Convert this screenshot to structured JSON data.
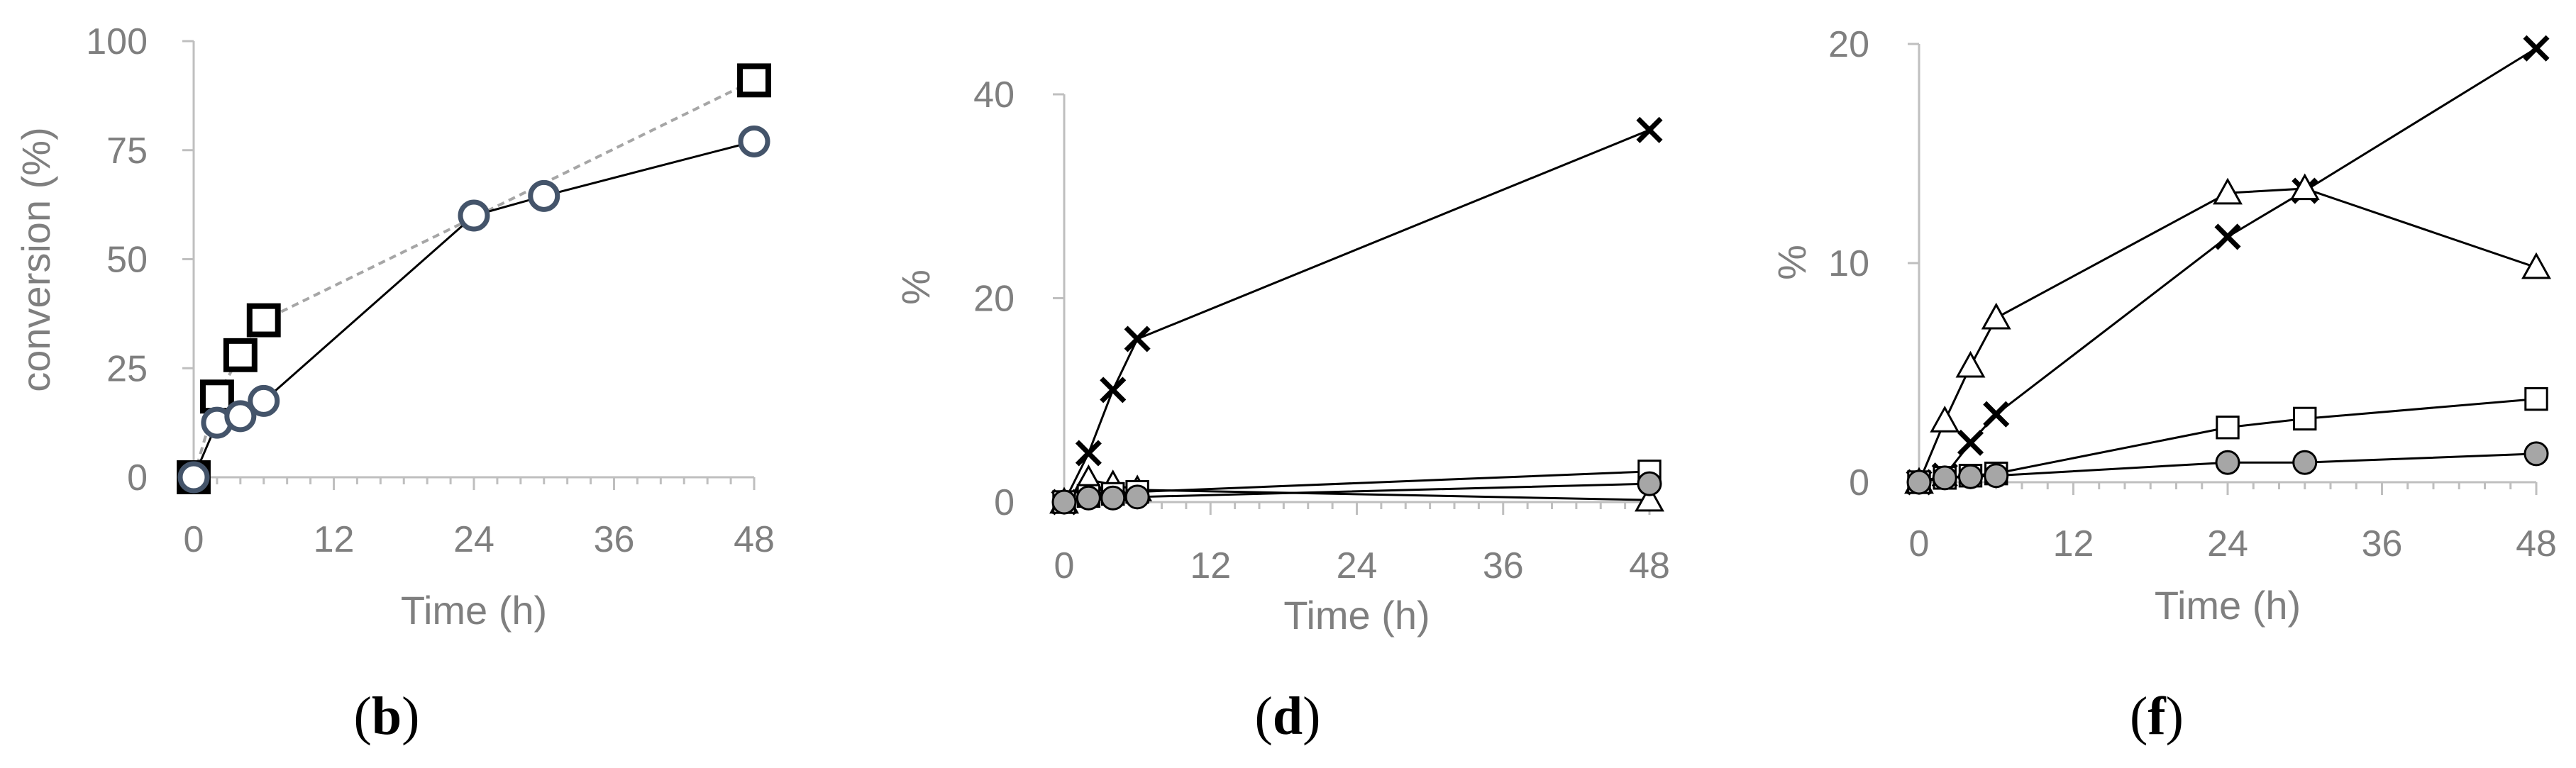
{
  "chart_data": [
    {
      "panel": "b",
      "type": "line",
      "xlabel": "Time (h)",
      "ylabel": "conversion (%)",
      "xlim": [
        0,
        48
      ],
      "ylim": [
        0,
        100
      ],
      "xticks": [
        "0",
        "12",
        "24",
        "36",
        "48"
      ],
      "yticks": [
        "0",
        "25",
        "50",
        "75",
        "100"
      ],
      "series": [
        {
          "marker": "square-bold",
          "line": "dashed-gray",
          "x": [
            0,
            2,
            4,
            6,
            48
          ],
          "y": [
            0,
            18.5,
            28,
            36,
            91
          ]
        },
        {
          "marker": "circle-steel",
          "line": "solid-black",
          "x": [
            0,
            2,
            4,
            6,
            24,
            30,
            48
          ],
          "y": [
            0,
            12.5,
            14,
            17.5,
            60,
            64.5,
            77
          ]
        }
      ]
    },
    {
      "panel": "d",
      "type": "line",
      "xlabel": "Time (h)",
      "ylabel": "%",
      "xlim": [
        0,
        48
      ],
      "ylim": [
        0,
        40
      ],
      "xticks": [
        "0",
        "12",
        "24",
        "36",
        "48"
      ],
      "yticks": [
        "0",
        "20",
        "40"
      ],
      "series": [
        {
          "marker": "cross",
          "x": [
            0,
            2,
            4,
            6,
            48
          ],
          "y": [
            0,
            4.8,
            11,
            16,
            36.5
          ]
        },
        {
          "marker": "triangle",
          "x": [
            0,
            2,
            4,
            6,
            48
          ],
          "y": [
            0,
            2.2,
            1.7,
            1.2,
            0.2
          ]
        },
        {
          "marker": "square",
          "x": [
            0,
            2,
            4,
            6,
            48
          ],
          "y": [
            0,
            0.6,
            0.8,
            1.0,
            3.0
          ]
        },
        {
          "marker": "circle-gray",
          "x": [
            0,
            2,
            4,
            6,
            48
          ],
          "y": [
            0,
            0.4,
            0.4,
            0.5,
            1.8
          ]
        }
      ]
    },
    {
      "panel": "f",
      "type": "line",
      "xlabel": "Time (h)",
      "ylabel": "%",
      "xlim": [
        0,
        48
      ],
      "ylim": [
        0,
        20
      ],
      "xticks": [
        "0",
        "12",
        "24",
        "36",
        "48"
      ],
      "yticks": [
        "0",
        "10",
        "20"
      ],
      "series": [
        {
          "marker": "cross",
          "x": [
            0,
            2,
            4,
            6,
            24,
            30,
            48
          ],
          "y": [
            0,
            0.3,
            1.8,
            3.1,
            11.2,
            13.3,
            19.8
          ]
        },
        {
          "marker": "triangle",
          "x": [
            0,
            2,
            4,
            6,
            24,
            30,
            48
          ],
          "y": [
            0,
            2.8,
            5.3,
            7.5,
            13.2,
            13.4,
            9.8
          ]
        },
        {
          "marker": "square",
          "x": [
            0,
            2,
            4,
            6,
            24,
            30,
            48
          ],
          "y": [
            0,
            0.2,
            0.3,
            0.4,
            2.5,
            2.9,
            3.8
          ]
        },
        {
          "marker": "circle-gray",
          "x": [
            0,
            2,
            4,
            6,
            24,
            30,
            48
          ],
          "y": [
            0,
            0.2,
            0.25,
            0.3,
            0.9,
            0.9,
            1.3
          ]
        }
      ]
    }
  ],
  "panel_labels": {
    "b": {
      "open": "(",
      "letter": "b",
      "close": ")"
    },
    "d": {
      "open": "(",
      "letter": "d",
      "close": ")"
    },
    "f": {
      "open": "(",
      "letter": "f",
      "close": ")"
    }
  }
}
